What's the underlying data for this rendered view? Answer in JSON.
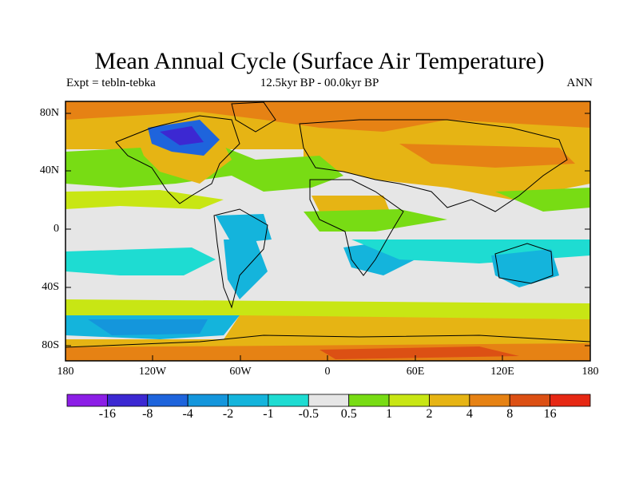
{
  "title": "Mean Annual Cycle (Surface Air Temperature)",
  "left_label": "Expt = tebln-tebka",
  "center_label": "12.5kyr BP - 00.0kyr BP",
  "right_label": "ANN",
  "lat_ticks": [
    "80N",
    "40N",
    "0",
    "40S",
    "80S"
  ],
  "lon_ticks": [
    "180",
    "120W",
    "60W",
    "0",
    "60E",
    "120E",
    "180"
  ],
  "colorbar": {
    "labels": [
      "-16",
      "-8",
      "-4",
      "-2",
      "-1",
      "-0.5",
      "0.5",
      "1",
      "2",
      "4",
      "8",
      "16"
    ],
    "colors": [
      "#8c1ee6",
      "#3c28d2",
      "#1e64dc",
      "#1496dc",
      "#14b4dc",
      "#1edcd2",
      "#e6e6e6",
      "#78dc14",
      "#c8e614",
      "#e6b414",
      "#e68214",
      "#dc5014",
      "#e62814"
    ]
  }
}
